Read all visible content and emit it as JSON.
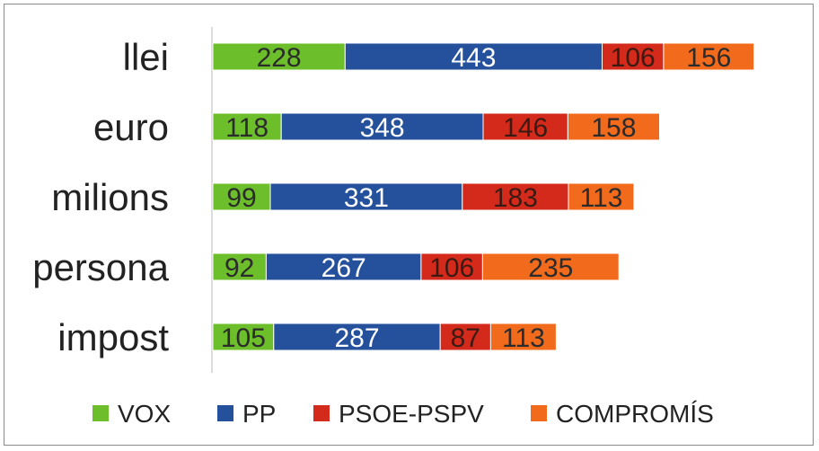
{
  "chart_data": {
    "type": "bar",
    "orientation": "horizontal",
    "stacked": true,
    "categories": [
      "llei",
      "euro",
      "milions",
      "persona",
      "impost"
    ],
    "series": [
      {
        "name": "VOX",
        "values": [
          228,
          118,
          99,
          92,
          105
        ],
        "color": "#6cbf2a",
        "label_color": "#2b2b2b"
      },
      {
        "name": "PP",
        "values": [
          443,
          348,
          331,
          267,
          287
        ],
        "color": "#24509c",
        "label_color": "#ffffff"
      },
      {
        "name": "PSOE-PSPV",
        "values": [
          106,
          146,
          183,
          106,
          87
        ],
        "color": "#d42a1c",
        "label_color": "#3a1a12"
      },
      {
        "name": "COMPROMÍS",
        "values": [
          156,
          158,
          113,
          235,
          113
        ],
        "color": "#f26b1d",
        "label_color": "#2b2b2b"
      }
    ],
    "title": "",
    "xlabel": "",
    "ylabel": "",
    "xlim": [
      0,
      936
    ],
    "grid": false,
    "legend_position": "bottom"
  }
}
